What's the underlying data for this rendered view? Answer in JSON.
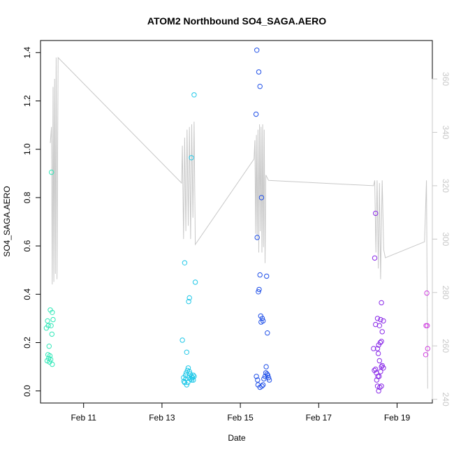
{
  "chart_data": {
    "type": "scatter",
    "title": "ATOM2 Northbound SO4_SAGA.AERO",
    "xlabel": "Date",
    "ylabel": "SO4_SAGA.AERO",
    "x_axis": {
      "range": [
        9.9,
        19.9
      ],
      "ticks": [
        {
          "value": 11,
          "label": "Feb 11"
        },
        {
          "value": 13,
          "label": "Feb 13"
        },
        {
          "value": 15,
          "label": "Feb 15"
        },
        {
          "value": 17,
          "label": "Feb 17"
        },
        {
          "value": 19,
          "label": "Feb 19"
        }
      ]
    },
    "y_axis": {
      "range": [
        -0.05,
        1.45
      ],
      "ticks": [
        "0.0",
        "0.2",
        "0.4",
        "0.6",
        "0.8",
        "1.0",
        "1.2",
        "1.4"
      ]
    },
    "y2_axis": {
      "range": [
        238.6,
        374.4
      ],
      "ticks": [
        "240",
        "260",
        "280",
        "300",
        "320",
        "340",
        "360"
      ],
      "series_name": "secondary (gray line)"
    },
    "colors": {
      "line": "#c8c8c8",
      "groups": [
        "#30e8b8",
        "#20c8e8",
        "#2050e8",
        "#8a2ae8",
        "#d040e0"
      ]
    },
    "line_series": [
      [
        10.15,
        336
      ],
      [
        10.18,
        342
      ],
      [
        10.2,
        283
      ],
      [
        10.22,
        357
      ],
      [
        10.24,
        284
      ],
      [
        10.26,
        360
      ],
      [
        10.28,
        287
      ],
      [
        10.3,
        368
      ],
      [
        10.32,
        285
      ],
      [
        10.35,
        368
      ],
      [
        13.5,
        321
      ],
      [
        13.52,
        335
      ],
      [
        13.55,
        300
      ],
      [
        13.58,
        338
      ],
      [
        13.61,
        303
      ],
      [
        13.64,
        341
      ],
      [
        13.67,
        305
      ],
      [
        13.7,
        342
      ],
      [
        13.73,
        300
      ],
      [
        13.76,
        343
      ],
      [
        13.79,
        308
      ],
      [
        13.82,
        344
      ],
      [
        13.85,
        298
      ],
      [
        15.35,
        330
      ],
      [
        15.37,
        337
      ],
      [
        15.39,
        302
      ],
      [
        15.41,
        339
      ],
      [
        15.43,
        300
      ],
      [
        15.45,
        341
      ],
      [
        15.47,
        295
      ],
      [
        15.49,
        343
      ],
      [
        15.51,
        303
      ],
      [
        15.53,
        342
      ],
      [
        15.55,
        295
      ],
      [
        15.57,
        343
      ],
      [
        15.59,
        297
      ],
      [
        15.61,
        341
      ],
      [
        15.63,
        291
      ],
      [
        15.65,
        324
      ],
      [
        15.72,
        322
      ],
      [
        18.4,
        320
      ],
      [
        18.43,
        322
      ],
      [
        18.46,
        295
      ],
      [
        18.49,
        322
      ],
      [
        18.52,
        289
      ],
      [
        18.55,
        321
      ],
      [
        18.58,
        285
      ],
      [
        18.62,
        322
      ],
      [
        18.66,
        296
      ],
      [
        18.7,
        293
      ],
      [
        19.7,
        299
      ],
      [
        19.75,
        322
      ],
      [
        19.78,
        244
      ]
    ],
    "scatter_groups": [
      {
        "color": "#30e8b8",
        "points": [
          [
            10.18,
            0.905
          ],
          [
            10.15,
            0.335
          ],
          [
            10.2,
            0.325
          ],
          [
            10.08,
            0.29
          ],
          [
            10.22,
            0.295
          ],
          [
            10.1,
            0.27
          ],
          [
            10.05,
            0.26
          ],
          [
            10.17,
            0.27
          ],
          [
            10.19,
            0.235
          ],
          [
            10.12,
            0.185
          ],
          [
            10.09,
            0.15
          ],
          [
            10.14,
            0.145
          ],
          [
            10.11,
            0.135
          ],
          [
            10.16,
            0.13
          ],
          [
            10.07,
            0.125
          ],
          [
            10.13,
            0.12
          ],
          [
            10.2,
            0.11
          ]
        ]
      },
      {
        "color": "#20c8e8",
        "points": [
          [
            13.82,
            1.225
          ],
          [
            13.75,
            0.965
          ],
          [
            13.58,
            0.53
          ],
          [
            13.85,
            0.45
          ],
          [
            13.7,
            0.385
          ],
          [
            13.68,
            0.37
          ],
          [
            13.52,
            0.21
          ],
          [
            13.63,
            0.16
          ],
          [
            13.55,
            0.055
          ],
          [
            13.6,
            0.065
          ],
          [
            13.62,
            0.075
          ],
          [
            13.65,
            0.085
          ],
          [
            13.67,
            0.095
          ],
          [
            13.7,
            0.08
          ],
          [
            13.72,
            0.07
          ],
          [
            13.75,
            0.06
          ],
          [
            13.78,
            0.055
          ],
          [
            13.8,
            0.045
          ],
          [
            13.56,
            0.04
          ],
          [
            13.58,
            0.035
          ],
          [
            13.63,
            0.025
          ],
          [
            13.66,
            0.035
          ],
          [
            13.73,
            0.05
          ],
          [
            13.76,
            0.045
          ],
          [
            13.8,
            0.065
          ],
          [
            13.82,
            0.06
          ],
          [
            13.69,
            0.055
          ],
          [
            13.61,
            0.05
          ]
        ]
      },
      {
        "color": "#2050e8",
        "points": [
          [
            15.42,
            1.41
          ],
          [
            15.47,
            1.32
          ],
          [
            15.5,
            1.26
          ],
          [
            15.4,
            1.145
          ],
          [
            15.54,
            0.8
          ],
          [
            15.43,
            0.635
          ],
          [
            15.5,
            0.48
          ],
          [
            15.67,
            0.475
          ],
          [
            15.48,
            0.42
          ],
          [
            15.46,
            0.41
          ],
          [
            15.52,
            0.31
          ],
          [
            15.56,
            0.3
          ],
          [
            15.58,
            0.29
          ],
          [
            15.53,
            0.285
          ],
          [
            15.69,
            0.24
          ],
          [
            15.66,
            0.1
          ],
          [
            15.65,
            0.075
          ],
          [
            15.68,
            0.07
          ],
          [
            15.7,
            0.065
          ],
          [
            15.63,
            0.06
          ],
          [
            15.72,
            0.055
          ],
          [
            15.6,
            0.05
          ],
          [
            15.74,
            0.045
          ],
          [
            15.41,
            0.06
          ],
          [
            15.44,
            0.045
          ],
          [
            15.45,
            0.025
          ],
          [
            15.5,
            0.015
          ],
          [
            15.55,
            0.02
          ],
          [
            15.58,
            0.025
          ]
        ]
      },
      {
        "color": "#8a2ae8",
        "points": [
          [
            18.45,
            0.735
          ],
          [
            18.43,
            0.55
          ],
          [
            18.6,
            0.365
          ],
          [
            18.5,
            0.3
          ],
          [
            18.58,
            0.295
          ],
          [
            18.65,
            0.29
          ],
          [
            18.45,
            0.275
          ],
          [
            18.55,
            0.27
          ],
          [
            18.62,
            0.245
          ],
          [
            18.6,
            0.205
          ],
          [
            18.57,
            0.2
          ],
          [
            18.53,
            0.19
          ],
          [
            18.5,
            0.175
          ],
          [
            18.4,
            0.175
          ],
          [
            18.52,
            0.155
          ],
          [
            18.55,
            0.125
          ],
          [
            18.62,
            0.105
          ],
          [
            18.65,
            0.095
          ],
          [
            18.6,
            0.1
          ],
          [
            18.45,
            0.09
          ],
          [
            18.42,
            0.085
          ],
          [
            18.58,
            0.08
          ],
          [
            18.47,
            0.075
          ],
          [
            18.51,
            0.06
          ],
          [
            18.54,
            0.06
          ],
          [
            18.48,
            0.045
          ],
          [
            18.5,
            0.02
          ],
          [
            18.56,
            0.015
          ],
          [
            18.6,
            0.02
          ],
          [
            18.53,
            0.0
          ]
        ]
      },
      {
        "color": "#d040e0",
        "points": [
          [
            19.76,
            0.405
          ],
          [
            19.74,
            0.27
          ],
          [
            19.77,
            0.27
          ],
          [
            19.78,
            0.175
          ],
          [
            19.73,
            0.15
          ]
        ]
      }
    ]
  }
}
